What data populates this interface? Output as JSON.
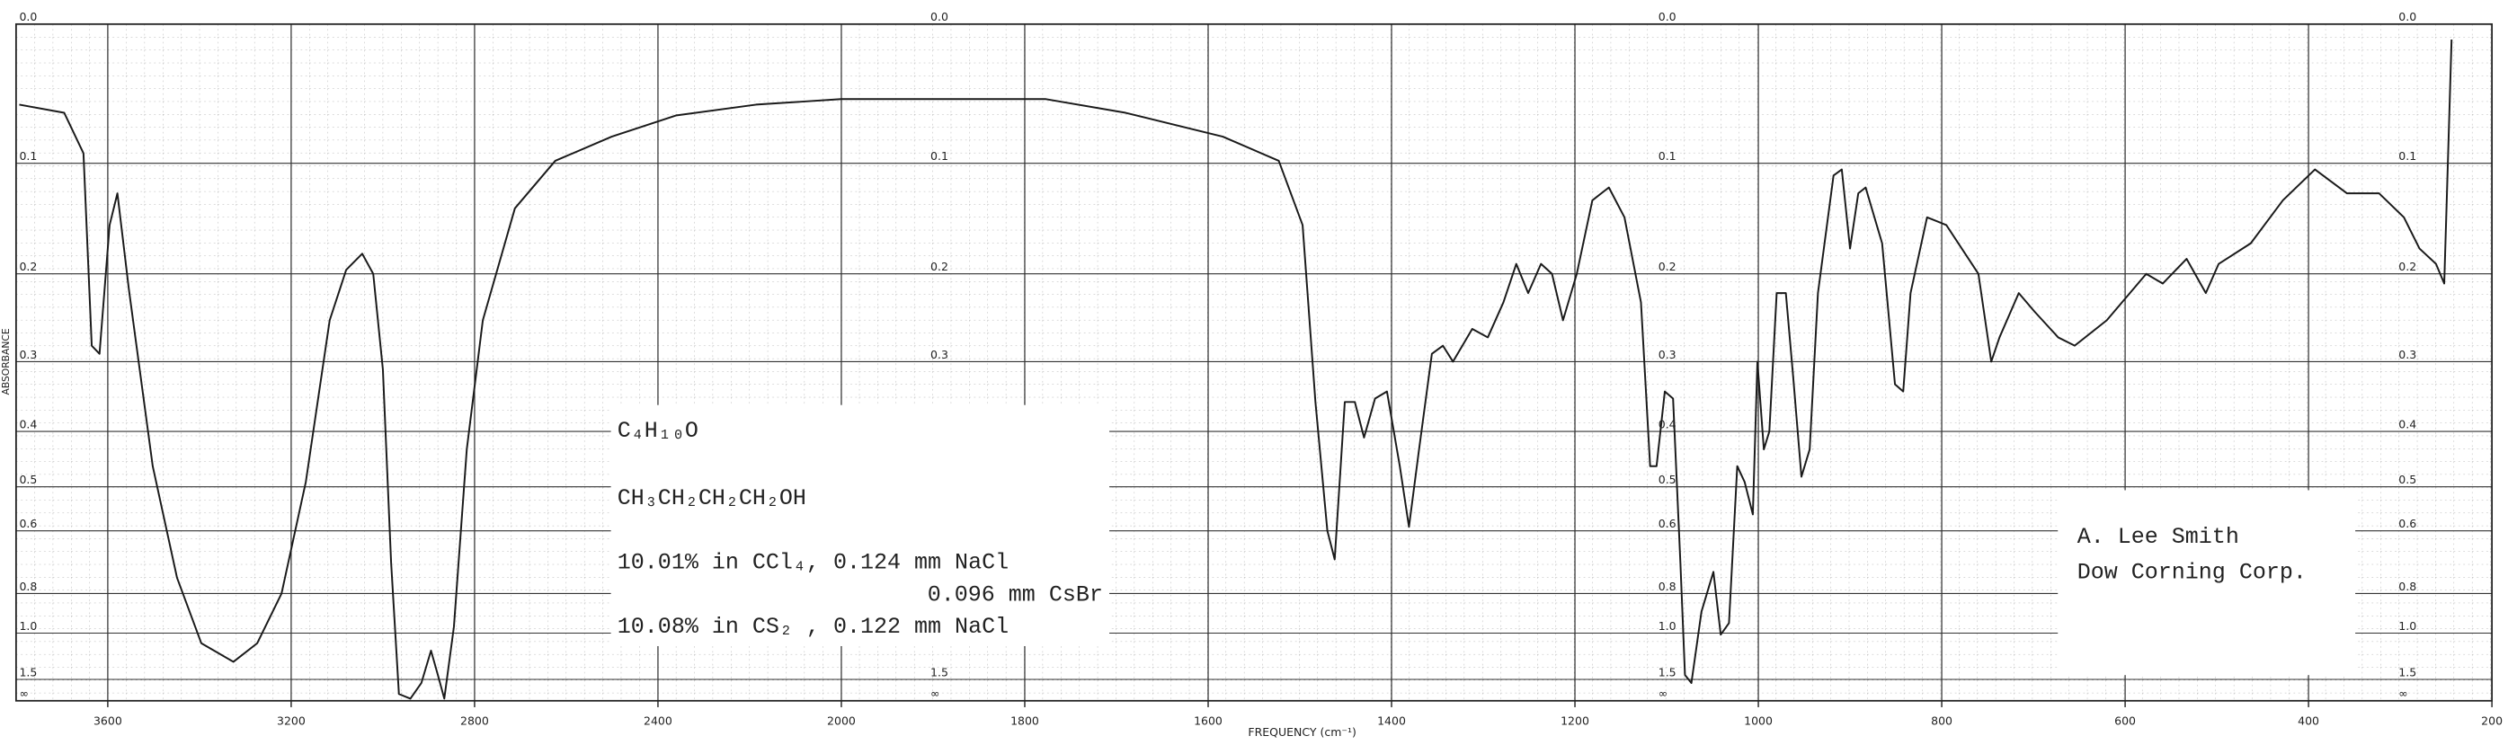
{
  "chart_data": {
    "type": "line",
    "x_label": "FREQUENCY (cm⁻¹)",
    "y_label": "ABSORBANCE",
    "y_scale": "transmittance",
    "grid": true,
    "xlim": [
      3800,
      200
    ],
    "xticks": [
      3600,
      3200,
      2800,
      2400,
      2000,
      1800,
      1600,
      1400,
      1200,
      1000,
      800,
      600,
      400,
      200
    ],
    "ylim": [
      0,
      null
    ],
    "yticks": [
      {
        "value": 0,
        "label": "0.0"
      },
      0.1,
      0.2,
      0.3,
      0.4,
      0.5,
      0.6,
      0.8,
      {
        "value": 1,
        "label": "1.0"
      },
      1.5,
      {
        "value": null,
        "label": "∞"
      }
    ],
    "annotations": [
      "C₄H₁₀O",
      "CH₃CH₂CH₂CH₂OH",
      "10.01% in CCl₄, 0.124 mm NaCl",
      "0.096 mm CsBr",
      "10.08% in CS₂ , 0.122 mm NaCl",
      "A. Lee Smith",
      "Dow Corning Corp."
    ],
    "x": [
      3793,
      3695,
      3653,
      3635,
      3618,
      3596,
      3579,
      3554,
      3502,
      3449,
      3396,
      3326,
      3274,
      3221,
      3168,
      3116,
      3080,
      3045,
      3021,
      3000,
      2982,
      2965,
      2940,
      2916,
      2895,
      2880,
      2866,
      2845,
      2817,
      2782,
      2712,
      2624,
      2501,
      2361,
      2186,
      2000,
      1874,
      1777,
      1690,
      1584,
      1523,
      1497,
      1483,
      1470,
      1462,
      1451,
      1440,
      1430,
      1418,
      1405,
      1391,
      1381,
      1370,
      1356,
      1344,
      1333,
      1312,
      1295,
      1278,
      1264,
      1251,
      1237,
      1225,
      1213,
      1198,
      1181,
      1163,
      1146,
      1128,
      1118,
      1111,
      1102,
      1093,
      1085,
      1080,
      1073,
      1062,
      1049,
      1041,
      1032,
      1023,
      1015,
      1006,
      1001,
      994,
      988,
      980,
      970,
      962,
      953,
      944,
      935,
      918,
      909,
      900,
      891,
      883,
      865,
      851,
      842,
      834,
      816,
      795,
      760,
      746,
      737,
      716,
      699,
      673,
      655,
      620,
      577,
      559,
      533,
      512,
      498,
      463,
      428,
      393,
      358,
      323,
      296,
      279,
      261,
      252,
      244
    ],
    "series": [
      {
        "color": "#1a1a1a",
        "values": [
          0.055,
          0.061,
          0.092,
          0.28,
          0.29,
          0.153,
          0.125,
          0.216,
          0.46,
          0.74,
          1.07,
          1.24,
          1.07,
          0.8,
          0.49,
          0.25,
          0.196,
          0.18,
          0.2,
          0.31,
          0.69,
          2.0,
          2.5,
          1.58,
          1.13,
          1.42,
          2.5,
          0.96,
          0.43,
          0.25,
          0.138,
          0.098,
          0.079,
          0.063,
          0.055,
          0.051,
          0.051,
          0.051,
          0.061,
          0.079,
          0.098,
          0.153,
          0.355,
          0.6,
          0.68,
          0.355,
          0.355,
          0.41,
          0.35,
          0.34,
          0.46,
          0.59,
          0.43,
          0.29,
          0.28,
          0.3,
          0.26,
          0.27,
          0.23,
          0.19,
          0.22,
          0.19,
          0.2,
          0.25,
          0.2,
          0.131,
          0.12,
          0.146,
          0.23,
          0.46,
          0.46,
          0.34,
          0.35,
          0.69,
          1.42,
          1.58,
          0.88,
          0.72,
          1.01,
          0.94,
          0.46,
          0.49,
          0.56,
          0.3,
          0.43,
          0.4,
          0.22,
          0.22,
          0.32,
          0.48,
          0.43,
          0.22,
          0.11,
          0.105,
          0.175,
          0.125,
          0.12,
          0.17,
          0.33,
          0.34,
          0.22,
          0.146,
          0.153,
          0.2,
          0.3,
          0.27,
          0.22,
          0.24,
          0.27,
          0.28,
          0.25,
          0.2,
          0.21,
          0.185,
          0.22,
          0.19,
          0.17,
          0.131,
          0.105,
          0.125,
          0.125,
          0.146,
          0.175,
          0.19,
          0.21,
          0.01
        ]
      }
    ]
  }
}
